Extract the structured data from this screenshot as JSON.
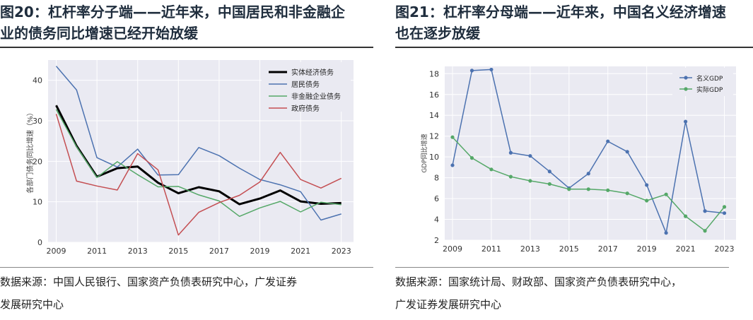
{
  "left": {
    "title_line1": "图20：杠杆率分子端——近年来，中国居民和非金融企",
    "title_line2": "业的债务同比增速已经开始放缓",
    "source_line1": "数据来源：中国人民银行、国家资产负债表研究中心，广发证券",
    "source_line2": "发展研究中心"
  },
  "right": {
    "title_line1": "图21：杠杆率分母端——近年来，中国名义经济增速",
    "title_line2": "也在逐步放缓",
    "source_line1": "数据来源：国家统计局、财政部、国家资产负债表研究中心，",
    "source_line2": "广发证券发展研究中心"
  },
  "colors": {
    "plot_bg": "#eaeaf2",
    "grid": "#ffffff",
    "black": "#000000",
    "blue": "#4c72b0",
    "green": "#55a868",
    "red": "#c44e52"
  },
  "chart_data": [
    {
      "type": "line",
      "title": "",
      "xlabel": "",
      "ylabel": "各部门债务同比增速（%）",
      "xlim": [
        2008.6,
        2023.6
      ],
      "ylim": [
        0,
        45
      ],
      "xticks": [
        "2009",
        "2011",
        "2013",
        "2015",
        "2017",
        "2019",
        "2021",
        "2023"
      ],
      "yticks": [
        "0",
        "10",
        "20",
        "30",
        "40"
      ],
      "legend_position": "top-right",
      "x": [
        2009,
        2010,
        2011,
        2012,
        2013,
        2014,
        2015,
        2016,
        2017,
        2018,
        2019,
        2020,
        2021,
        2022,
        2023
      ],
      "series": [
        {
          "name": "实体经济债务",
          "color": "#000000",
          "width": 3,
          "markers": false,
          "values": [
            33.8,
            23.8,
            16.2,
            18.3,
            18.7,
            14.7,
            12.1,
            13.6,
            12.6,
            9.4,
            10.8,
            12.8,
            10.1,
            9.5,
            9.7
          ]
        },
        {
          "name": "居民债务",
          "color": "#4c72b0",
          "width": 1.5,
          "markers": false,
          "values": [
            43.5,
            37.6,
            20.9,
            18.6,
            23.0,
            16.6,
            16.7,
            23.4,
            21.4,
            18.3,
            15.5,
            14.2,
            12.5,
            5.5,
            7.0
          ]
        },
        {
          "name": "非金融企业债务",
          "color": "#55a868",
          "width": 1.5,
          "markers": false,
          "values": [
            32.8,
            23.6,
            16.0,
            19.9,
            16.7,
            13.7,
            13.8,
            11.7,
            10.2,
            6.4,
            8.5,
            10.1,
            7.5,
            9.9,
            9.3
          ]
        },
        {
          "name": "政府债务",
          "color": "#c44e52",
          "width": 1.5,
          "markers": false,
          "values": [
            31.7,
            15.1,
            13.9,
            12.9,
            21.9,
            17.9,
            1.8,
            7.4,
            9.8,
            11.6,
            14.9,
            22.2,
            15.5,
            13.4,
            15.8
          ]
        }
      ]
    },
    {
      "type": "line",
      "title": "",
      "xlabel": "",
      "ylabel": "GDP同比增速",
      "xlim": [
        2008.6,
        2023.6
      ],
      "ylim": [
        2,
        18.7
      ],
      "xticks": [
        "2009",
        "2011",
        "2013",
        "2015",
        "2017",
        "2019",
        "2021",
        "2023"
      ],
      "yticks": [
        "2",
        "4",
        "6",
        "8",
        "10",
        "12",
        "14",
        "16",
        "18"
      ],
      "legend_position": "top-right",
      "x": [
        2009,
        2010,
        2011,
        2012,
        2013,
        2014,
        2015,
        2016,
        2017,
        2018,
        2019,
        2020,
        2021,
        2022,
        2023
      ],
      "series": [
        {
          "name": "名义GDP",
          "color": "#4c72b0",
          "width": 1.5,
          "markers": true,
          "values": [
            9.2,
            18.3,
            18.4,
            10.4,
            10.1,
            8.6,
            7.0,
            8.4,
            11.5,
            10.5,
            7.3,
            2.7,
            13.4,
            4.8,
            4.6
          ]
        },
        {
          "name": "实际GDP",
          "color": "#55a868",
          "width": 1.5,
          "markers": true,
          "values": [
            11.9,
            9.9,
            8.8,
            8.1,
            7.7,
            7.4,
            6.9,
            6.9,
            6.8,
            6.5,
            5.8,
            6.4,
            4.3,
            2.9,
            5.2
          ]
        }
      ]
    }
  ]
}
